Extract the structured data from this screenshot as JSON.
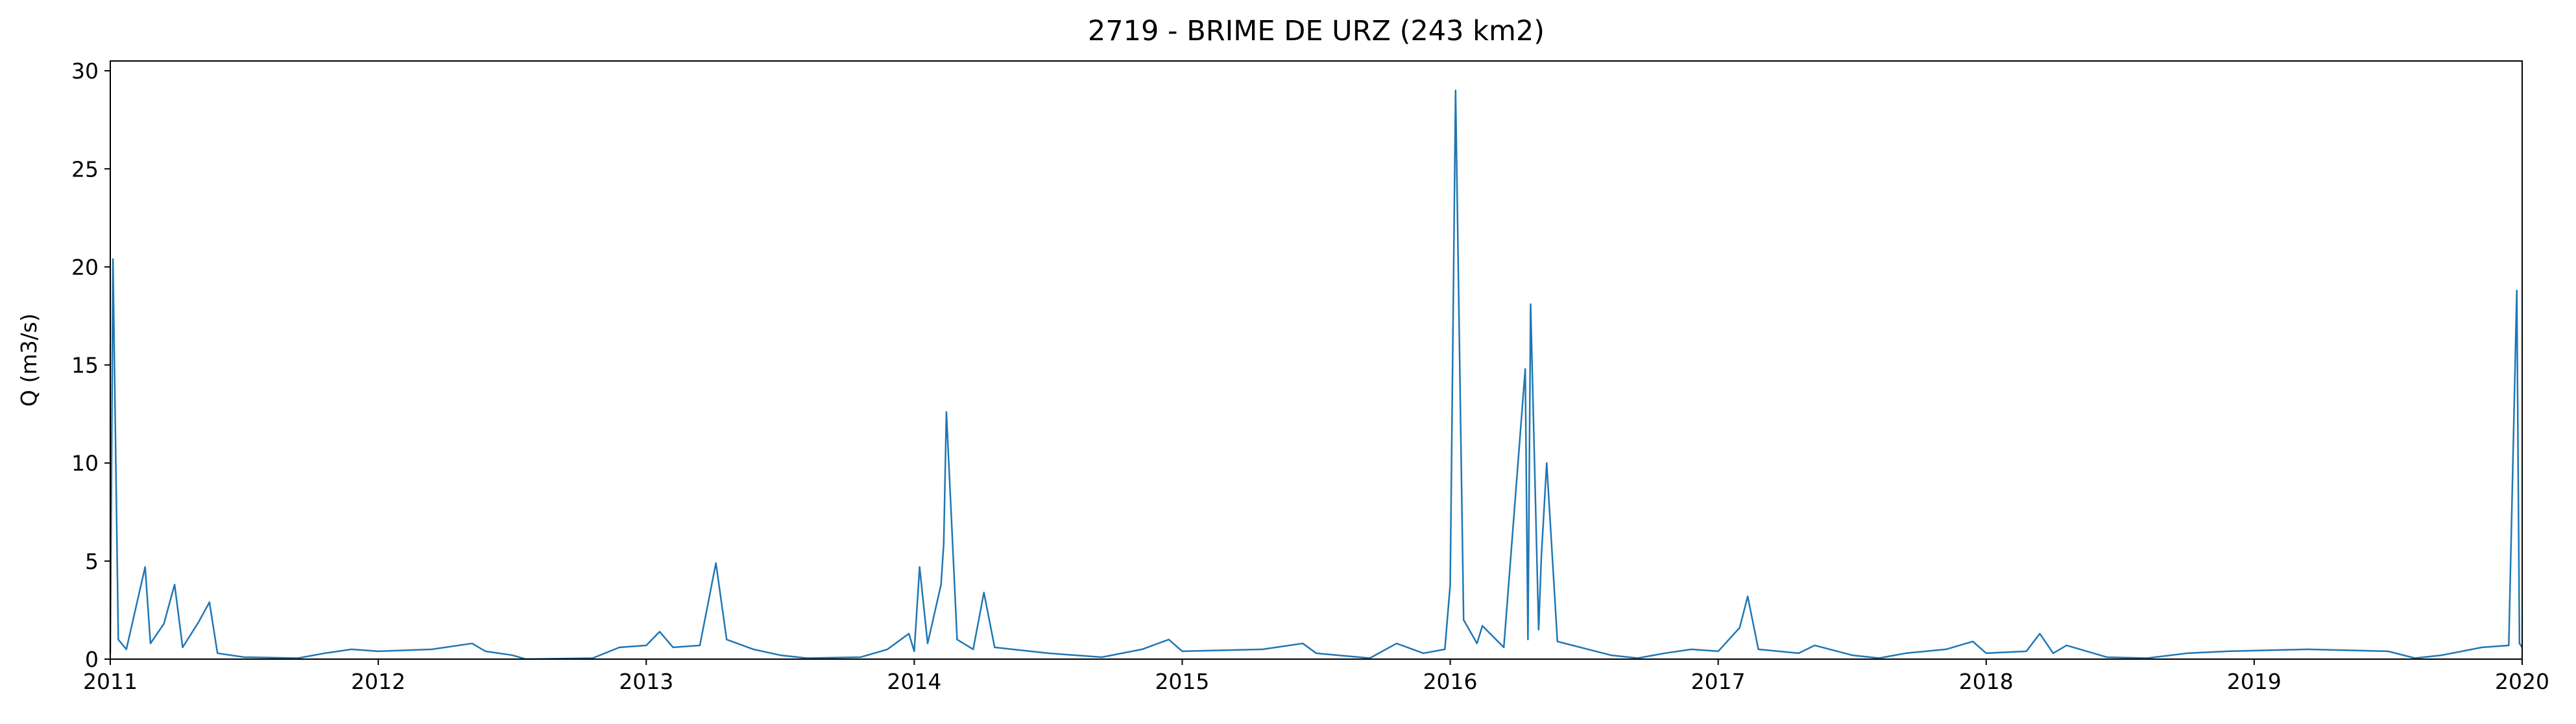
{
  "chart_data": {
    "type": "line",
    "title": "2719 - BRIME DE URZ (243 km2)",
    "ylabel": "Q (m3/s)",
    "color": "#1f77b4",
    "xlim": [
      2011,
      2020
    ],
    "xticks": [
      2011,
      2012,
      2013,
      2014,
      2015,
      2016,
      2017,
      2018,
      2019,
      2020
    ],
    "ylim": [
      0,
      30.5
    ],
    "yticks": [
      0,
      5,
      10,
      15,
      20,
      25,
      30
    ],
    "grid": false,
    "x": [
      2011.0,
      2011.01,
      2011.03,
      2011.06,
      2011.13,
      2011.15,
      2011.2,
      2011.24,
      2011.27,
      2011.33,
      2011.37,
      2011.4,
      2011.5,
      2011.7,
      2011.8,
      2011.9,
      2012.0,
      2012.2,
      2012.35,
      2012.4,
      2012.5,
      2012.55,
      2012.8,
      2012.9,
      2013.0,
      2013.05,
      2013.1,
      2013.2,
      2013.26,
      2013.3,
      2013.4,
      2013.5,
      2013.6,
      2013.8,
      2013.9,
      2013.98,
      2014.0,
      2014.02,
      2014.05,
      2014.1,
      2014.11,
      2014.12,
      2014.16,
      2014.22,
      2014.26,
      2014.3,
      2014.5,
      2014.7,
      2014.85,
      2014.95,
      2015.0,
      2015.3,
      2015.45,
      2015.5,
      2015.7,
      2015.8,
      2015.9,
      2015.98,
      2016.0,
      2016.02,
      2016.05,
      2016.1,
      2016.12,
      2016.2,
      2016.28,
      2016.29,
      2016.3,
      2016.33,
      2016.34,
      2016.36,
      2016.4,
      2016.6,
      2016.7,
      2016.8,
      2016.9,
      2017.0,
      2017.08,
      2017.11,
      2017.15,
      2017.3,
      2017.36,
      2017.5,
      2017.6,
      2017.7,
      2017.85,
      2017.95,
      2018.0,
      2018.15,
      2018.2,
      2018.25,
      2018.3,
      2018.45,
      2018.6,
      2018.75,
      2018.9,
      2019.2,
      2019.5,
      2019.6,
      2019.7,
      2019.85,
      2019.95,
      2019.98,
      2019.99,
      2020.0
    ],
    "values": [
      0.3,
      20.4,
      1.0,
      0.5,
      4.7,
      0.8,
      1.8,
      3.8,
      0.6,
      1.9,
      2.9,
      0.3,
      0.1,
      0.05,
      0.3,
      0.5,
      0.4,
      0.5,
      0.8,
      0.4,
      0.2,
      0.0,
      0.05,
      0.6,
      0.7,
      1.4,
      0.6,
      0.7,
      4.9,
      1.0,
      0.5,
      0.2,
      0.05,
      0.1,
      0.5,
      1.3,
      0.4,
      4.7,
      0.8,
      3.8,
      5.9,
      12.6,
      1.0,
      0.5,
      3.4,
      0.6,
      0.3,
      0.1,
      0.5,
      1.0,
      0.4,
      0.5,
      0.8,
      0.3,
      0.05,
      0.8,
      0.3,
      0.5,
      3.8,
      29.0,
      2.0,
      0.8,
      1.7,
      0.6,
      14.8,
      1.0,
      18.1,
      1.5,
      5.2,
      10.0,
      0.9,
      0.2,
      0.05,
      0.3,
      0.5,
      0.4,
      1.6,
      3.2,
      0.5,
      0.3,
      0.7,
      0.2,
      0.05,
      0.3,
      0.5,
      0.9,
      0.3,
      0.4,
      1.3,
      0.3,
      0.7,
      0.1,
      0.05,
      0.3,
      0.4,
      0.5,
      0.4,
      0.05,
      0.2,
      0.6,
      0.7,
      18.8,
      0.8,
      0.6
    ]
  }
}
